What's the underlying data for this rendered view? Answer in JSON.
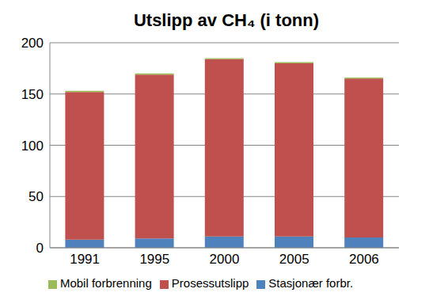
{
  "chart_data": {
    "type": "bar",
    "title": "Utslipp av CH₄ (i  tonn)",
    "categories": [
      "1991",
      "1995",
      "2000",
      "2005",
      "2006"
    ],
    "series": [
      {
        "name": "Stasjonær forbr.",
        "color": "#4f81bd",
        "values": [
          8,
          9,
          11,
          11,
          10
        ]
      },
      {
        "name": "Prosessutslipp",
        "color": "#c0504d",
        "values": [
          144,
          160,
          173,
          169,
          155
        ]
      },
      {
        "name": "Mobil forbrenning",
        "color": "#9bbb59",
        "values": [
          1,
          1,
          1,
          1,
          1
        ]
      }
    ],
    "stacked": true,
    "ylim": [
      0,
      200
    ],
    "yticks": [
      0,
      50,
      100,
      150,
      200
    ],
    "grid": true,
    "legend": "bottom"
  }
}
